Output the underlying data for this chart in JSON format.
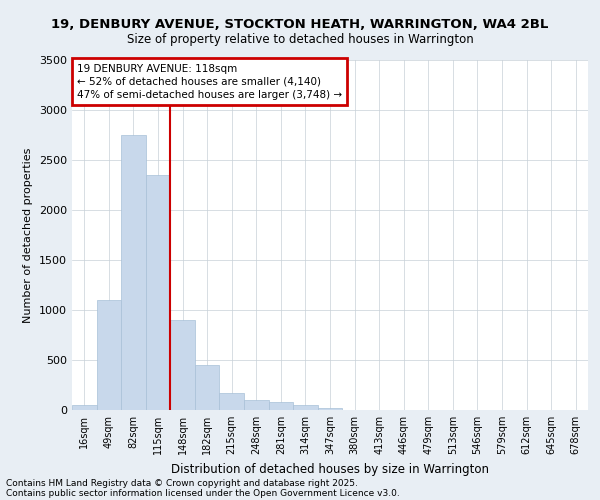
{
  "title1": "19, DENBURY AVENUE, STOCKTON HEATH, WARRINGTON, WA4 2BL",
  "title2": "Size of property relative to detached houses in Warrington",
  "xlabel": "Distribution of detached houses by size in Warrington",
  "ylabel": "Number of detached properties",
  "annotation_title": "19 DENBURY AVENUE: 118sqm",
  "annotation_line1": "← 52% of detached houses are smaller (4,140)",
  "annotation_line2": "47% of semi-detached houses are larger (3,748) →",
  "bar_color": "#c8d8eb",
  "bar_edge_color": "#a8c0d8",
  "redline_color": "#cc0000",
  "annotation_box_color": "#cc0000",
  "categories": [
    "16sqm",
    "49sqm",
    "82sqm",
    "115sqm",
    "148sqm",
    "182sqm",
    "215sqm",
    "248sqm",
    "281sqm",
    "314sqm",
    "347sqm",
    "380sqm",
    "413sqm",
    "446sqm",
    "479sqm",
    "513sqm",
    "546sqm",
    "579sqm",
    "612sqm",
    "645sqm",
    "678sqm"
  ],
  "values": [
    50,
    1100,
    2750,
    2350,
    900,
    450,
    175,
    100,
    80,
    50,
    20,
    5,
    5,
    3,
    2,
    1,
    1,
    0,
    0,
    0,
    0
  ],
  "red_line_index": 3.5,
  "ylim": [
    0,
    3500
  ],
  "yticks": [
    0,
    500,
    1000,
    1500,
    2000,
    2500,
    3000,
    3500
  ],
  "footnote1": "Contains HM Land Registry data © Crown copyright and database right 2025.",
  "footnote2": "Contains public sector information licensed under the Open Government Licence v3.0.",
  "bg_color": "#e8eef4",
  "plot_bg_color": "#ffffff",
  "grid_color": "#c8d0d8"
}
